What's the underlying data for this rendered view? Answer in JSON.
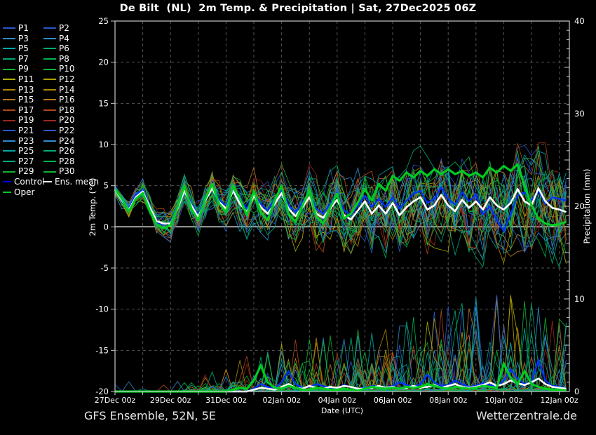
{
  "header": {
    "title": "De Bilt  (NL)  2m Temp. & Precipitation | Sat, 27Dec2025 06Z"
  },
  "footer": {
    "left": "GFS Ensemble, 52N, 5E",
    "right": "Wetterzentrale.de"
  },
  "colors": {
    "background": "#000000",
    "frame": "#c8c8c8",
    "grid": "#555555",
    "zero_line": "#ffffff",
    "text": "#ffffff"
  },
  "legend": {
    "members": [
      {
        "label": "P1",
        "color": "#2b55cc"
      },
      {
        "label": "P2",
        "color": "#2b55cc"
      },
      {
        "label": "P3",
        "color": "#2e8ccc"
      },
      {
        "label": "P4",
        "color": "#2e8ccc"
      },
      {
        "label": "P5",
        "color": "#00a8a8"
      },
      {
        "label": "P6",
        "color": "#00a878"
      },
      {
        "label": "P7",
        "color": "#00a878"
      },
      {
        "label": "P8",
        "color": "#00b44c"
      },
      {
        "label": "P9",
        "color": "#10b434"
      },
      {
        "label": "P10",
        "color": "#10b434"
      },
      {
        "label": "P11",
        "color": "#b0b000"
      },
      {
        "label": "P12",
        "color": "#b0a000"
      },
      {
        "label": "P13",
        "color": "#b08800"
      },
      {
        "label": "P14",
        "color": "#b08800"
      },
      {
        "label": "P15",
        "color": "#b87820"
      },
      {
        "label": "P16",
        "color": "#b87820"
      },
      {
        "label": "P17",
        "color": "#b04818"
      },
      {
        "label": "P18",
        "color": "#b04818"
      },
      {
        "label": "P19",
        "color": "#982820"
      },
      {
        "label": "P20",
        "color": "#982820"
      },
      {
        "label": "P21",
        "color": "#2b55cc"
      },
      {
        "label": "P22",
        "color": "#2b55cc"
      },
      {
        "label": "P23",
        "color": "#2e8ccc"
      },
      {
        "label": "P24",
        "color": "#2e8ccc"
      },
      {
        "label": "P25",
        "color": "#00a8a8"
      },
      {
        "label": "P26",
        "color": "#00a878"
      },
      {
        "label": "P27",
        "color": "#00a878"
      },
      {
        "label": "P28",
        "color": "#00b44c"
      },
      {
        "label": "P29",
        "color": "#10b434"
      },
      {
        "label": "P30",
        "color": "#10b434"
      }
    ],
    "specials": [
      {
        "label": "Control",
        "color": "#0000ff"
      },
      {
        "label": "Ens. mean",
        "color": "#ffffff"
      },
      {
        "label": "Oper",
        "color": "#00cc22"
      }
    ]
  },
  "chart_data": {
    "type": "line",
    "title": "De Bilt  (NL)  2m Temp. & Precipitation | Sat, 27Dec2025 06Z",
    "x_axis": {
      "label": "Date (UTC)",
      "tick_labels": [
        "27Dec 00z",
        "29Dec 00z",
        "31Dec 00z",
        "02Jan 00z",
        "04Jan 00z",
        "06Jan 00z",
        "08Jan 00z",
        "10Jan 00z",
        "12Jan 00z"
      ],
      "tick_interval_days": 2,
      "gridline_interval_days": 1,
      "points_interval_hours": 6,
      "days_shown": 16.35
    },
    "y_left": {
      "label": "2m Temp. (°C)",
      "min": -20,
      "max": 25,
      "ticks": [
        25,
        20,
        15,
        10,
        5,
        0,
        -5,
        -10,
        -15,
        -20
      ],
      "zero_line": true
    },
    "y_right": {
      "label": "Precipitation (mm)",
      "min": 0,
      "max": 40,
      "ticks": [
        40,
        30,
        20,
        10,
        0
      ],
      "minor_tick_mm": 1
    },
    "grid": true,
    "legend_position": "left",
    "series": [
      {
        "name": "Ens. mean",
        "color": "#ffffff",
        "width": 2.6,
        "temp": [
          4.5,
          3.2,
          2.1,
          3.6,
          4.3,
          2.4,
          0.7,
          0.4,
          0.4,
          2.2,
          4.4,
          2.6,
          1.2,
          3.2,
          4.7,
          3.0,
          2.2,
          4.4,
          2.8,
          1.8,
          3.8,
          2.4,
          1.6,
          2.8,
          4.1,
          2.2,
          1.3,
          2.4,
          3.6,
          1.6,
          1.1,
          2.2,
          3.3,
          1.4,
          0.9,
          2.0,
          3.1,
          1.6,
          2.6,
          1.6,
          2.9,
          1.4,
          2.4,
          3.1,
          3.6,
          2.1,
          2.6,
          3.9,
          2.6,
          1.9,
          3.3,
          2.3,
          3.1,
          2.1,
          3.6,
          2.6,
          2.1,
          2.9,
          4.6,
          3.1,
          2.6,
          4.7,
          3.1,
          2.3,
          2.1,
          1.8
        ],
        "precip": [
          0,
          0,
          0,
          0,
          0,
          0,
          0,
          0,
          0,
          0,
          0,
          0,
          0,
          0,
          0,
          0,
          0,
          0,
          0,
          0,
          0.2,
          0.4,
          0.3,
          0.2,
          0.5,
          0.8,
          0.4,
          0.3,
          0.6,
          0.4,
          0.3,
          0.5,
          0.4,
          0.6,
          0.5,
          0.3,
          0.3,
          0.4,
          0.6,
          0.4,
          0.5,
          0.3,
          0.4,
          0.6,
          0.4,
          0.5,
          0.7,
          0.4,
          0.6,
          0.8,
          0.5,
          0.4,
          0.5,
          0.7,
          1.0,
          0.6,
          0.8,
          1.2,
          0.9,
          0.7,
          1.0,
          1.4,
          0.8,
          0.5,
          0.4,
          0.3
        ]
      },
      {
        "name": "Control",
        "color": "#0033ff",
        "width": 2.3,
        "temp": [
          4.8,
          3.0,
          2.3,
          3.9,
          4.5,
          2.2,
          0.5,
          0.3,
          0.5,
          2.6,
          4.8,
          2.8,
          1.4,
          3.6,
          5.0,
          3.3,
          2.6,
          4.8,
          3.2,
          2.2,
          4.2,
          2.8,
          2.0,
          3.4,
          4.6,
          2.6,
          1.8,
          3.0,
          4.2,
          2.2,
          1.6,
          2.8,
          4.0,
          2.0,
          1.4,
          2.6,
          3.8,
          2.4,
          3.4,
          2.4,
          3.6,
          2.2,
          3.2,
          4.0,
          4.4,
          2.9,
          3.4,
          4.8,
          3.4,
          2.7,
          4.2,
          3.1,
          3.9,
          1.5,
          2.5,
          0.8,
          -0.5,
          1.5,
          3.8,
          4.2,
          3.2,
          4.4,
          2.8,
          3.6,
          3.4,
          3.2
        ],
        "precip": [
          0,
          0,
          0,
          0,
          0,
          0,
          0,
          0,
          0,
          0,
          0,
          0,
          0,
          0,
          0,
          0,
          0,
          0,
          0,
          0,
          0.3,
          0.8,
          0.5,
          0.3,
          1.0,
          2.2,
          0.8,
          0.4,
          0.5,
          0.8,
          0.6,
          0.4,
          0.4,
          0.7,
          0.5,
          0.3,
          0.4,
          0.6,
          0.5,
          0.4,
          0.6,
          1.0,
          0.7,
          0.5,
          0.8,
          1.8,
          1.0,
          0.6,
          0.7,
          1.2,
          0.8,
          0.5,
          0.6,
          0.9,
          0.7,
          0.5,
          1.2,
          2.4,
          1.4,
          0.8,
          1.0,
          3.4,
          1.2,
          0.6,
          0.5,
          0.3
        ]
      },
      {
        "name": "Oper",
        "color": "#00cc22",
        "width": 3.2,
        "temp": [
          4.6,
          3.4,
          1.9,
          3.4,
          4.1,
          2.0,
          0.3,
          -0.2,
          0.2,
          2.4,
          5.0,
          2.2,
          0.8,
          3.4,
          5.2,
          2.8,
          1.8,
          5.0,
          3.4,
          1.4,
          4.4,
          1.8,
          0.8,
          3.2,
          5.0,
          1.6,
          0.6,
          2.6,
          4.4,
          1.2,
          0.4,
          2.4,
          4.0,
          1.0,
          1.6,
          3.0,
          4.6,
          3.2,
          5.2,
          4.4,
          6.2,
          5.6,
          6.6,
          6.0,
          6.8,
          6.2,
          7.0,
          6.4,
          7.0,
          6.4,
          6.8,
          6.2,
          6.6,
          6.0,
          7.2,
          6.6,
          7.4,
          6.8,
          7.6,
          5.0,
          2.6,
          1.0,
          0.4,
          0.2,
          0.3,
          0.6
        ],
        "precip": [
          0,
          0,
          0,
          0,
          0,
          0,
          0,
          0,
          0,
          0,
          0,
          0,
          0,
          0,
          0,
          0,
          0,
          0.2,
          0.4,
          0.3,
          1.2,
          2.8,
          1.0,
          0.4,
          0.3,
          0.6,
          0.4,
          0.2,
          0.2,
          0.4,
          0.3,
          0.2,
          0.2,
          0.3,
          0.2,
          0.1,
          0.3,
          0.5,
          0.4,
          0.3,
          0.4,
          0.3,
          0.5,
          0.4,
          0.5,
          0.8,
          0.6,
          0.4,
          0.3,
          0.5,
          0.4,
          0.3,
          0.4,
          0.6,
          0.5,
          0.4,
          3.0,
          1.5,
          0.8,
          2.2,
          0.8,
          0.5,
          0.3,
          0.2,
          0.2,
          0.1
        ]
      }
    ],
    "ensemble": {
      "member_count": 30,
      "seed": 20251227,
      "temp_spread_amp_by_day": [
        0.5,
        1.1,
        1.7,
        2.1,
        2.5,
        2.9,
        3.3,
        3.7,
        4.1,
        4.4,
        4.7,
        4.9,
        5.1,
        5.3,
        5.5,
        5.7,
        5.9
      ],
      "precip_amp_by_day": [
        0,
        0,
        0,
        0.2,
        0.6,
        1.3,
        1.8,
        2.0,
        2.2,
        2.4,
        2.6,
        3.0,
        3.4,
        3.8,
        4.2,
        3.8,
        2.8
      ],
      "temp_clamp": [
        -7.2,
        10.2
      ],
      "precip_clamp": [
        0,
        10.4
      ]
    }
  }
}
